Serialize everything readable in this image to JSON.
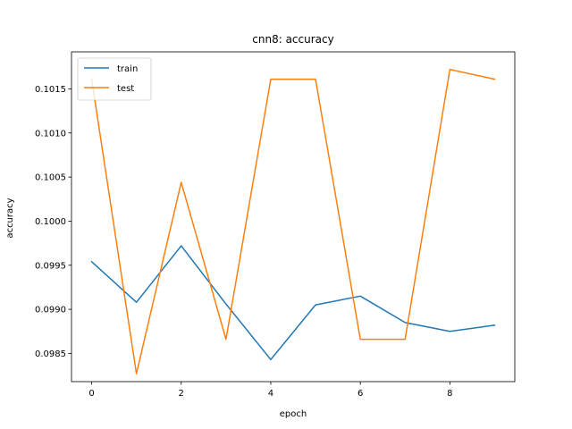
{
  "chart_data": {
    "type": "line",
    "title": "cnn8: accuracy",
    "xlabel": "epoch",
    "ylabel": "accuracy",
    "x": [
      0,
      1,
      2,
      3,
      4,
      5,
      6,
      7,
      8,
      9
    ],
    "xlim": [
      -0.45,
      9.45
    ],
    "ylim": [
      0.09818,
      0.10192
    ],
    "xticks": [
      0,
      2,
      4,
      6,
      8
    ],
    "xtick_labels": [
      "0",
      "2",
      "4",
      "6",
      "8"
    ],
    "yticks": [
      0.0985,
      0.099,
      0.0995,
      0.1,
      0.1005,
      0.101,
      0.1015
    ],
    "ytick_labels": [
      "0.0985",
      "0.0990",
      "0.0995",
      "0.1000",
      "0.1005",
      "0.1010",
      "0.1015"
    ],
    "grid": false,
    "legend_position": "top-left",
    "series": [
      {
        "name": "train",
        "color": "#1f77b4",
        "values": [
          0.09954,
          0.09908,
          0.09972,
          0.09906,
          0.09843,
          0.09905,
          0.09915,
          0.09885,
          0.09875,
          0.09882
        ]
      },
      {
        "name": "test",
        "color": "#ff7f0e",
        "values": [
          0.10161,
          0.09827,
          0.10044,
          0.09866,
          0.10161,
          0.10161,
          0.09866,
          0.09866,
          0.10172,
          0.10161
        ]
      }
    ]
  }
}
